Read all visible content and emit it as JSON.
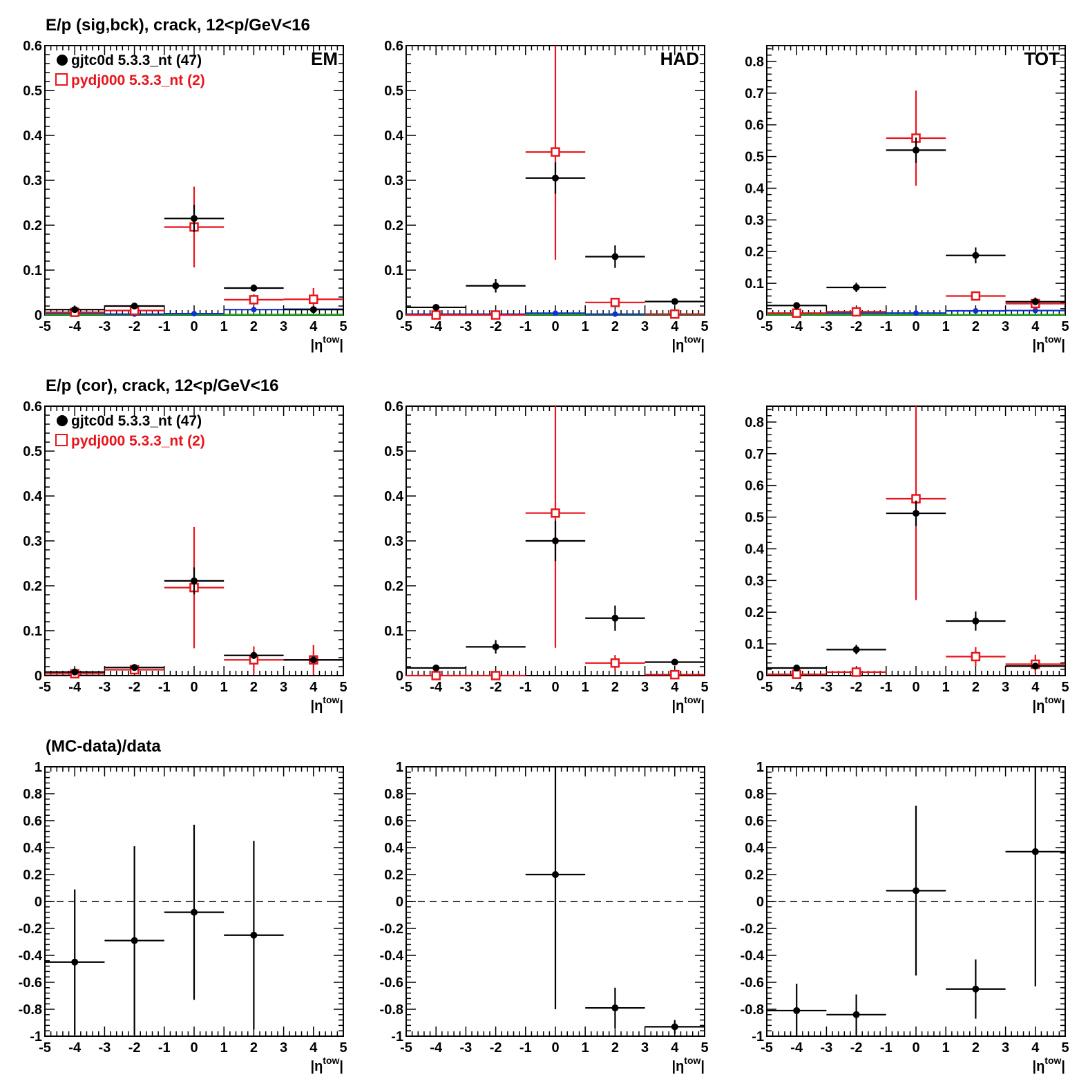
{
  "colors": {
    "data": "#000000",
    "mc": "#e8141c",
    "bck_blue": "#1030d0",
    "bck_green": "#10b010"
  },
  "legend": {
    "data_label": "gjtc0d 5.3.3_nt (47)",
    "mc_label": "pydj000 5.3.3_nt (2)"
  },
  "rows": [
    {
      "title": "E/p (sig,bck), crack, 12<p/GeV<16"
    },
    {
      "title": "E/p (cor), crack, 12<p/GeV<16"
    },
    {
      "title": "(MC-data)/data"
    }
  ],
  "axis": {
    "xlabel_main": "|η",
    "xlabel_sup": "tow",
    "xlabel_close": "|"
  },
  "chart_data": [
    {
      "type": "scatter",
      "row": 0,
      "col": 0,
      "tag": "EM",
      "legend": true,
      "x_edges": [
        -5,
        -3,
        -1,
        1,
        3,
        5
      ],
      "xlim": [
        -5,
        5
      ],
      "ylim": [
        0,
        0.6
      ],
      "xticks": [
        -5,
        -4,
        -3,
        -2,
        -1,
        0,
        1,
        2,
        3,
        4,
        5
      ],
      "yticks": [
        0,
        0.1,
        0.2,
        0.3,
        0.4,
        0.5,
        0.6
      ],
      "ytick_labels": [
        "0",
        "0.1",
        "0.2",
        "0.3",
        "0.4",
        "0.5",
        "0.6"
      ],
      "series": [
        {
          "name": "gjtc0d 5.3.3_nt (47)",
          "role": "data",
          "marker": "dot",
          "x": [
            -4,
            -2,
            0,
            2,
            4
          ],
          "y": [
            0.012,
            0.02,
            0.215,
            0.06,
            0.012
          ],
          "err": [
            0.003,
            0.005,
            0.03,
            0.008,
            0.003
          ]
        },
        {
          "name": "pydj000 5.3.3_nt (2)",
          "role": "mc",
          "marker": "square",
          "x": [
            -4,
            -2,
            0,
            2,
            4
          ],
          "y": [
            0.006,
            0.01,
            0.196,
            0.034,
            0.035
          ],
          "err": [
            0.003,
            0.006,
            0.09,
            0.012,
            0.025
          ]
        },
        {
          "role": "bck_blue",
          "marker": "diamond",
          "x": [
            -4,
            -2,
            0,
            2,
            4
          ],
          "y": [
            0.004,
            0.002,
            0.003,
            0.012,
            0.013
          ],
          "err": [
            0,
            0,
            0,
            0,
            0
          ]
        },
        {
          "role": "bck_green",
          "marker": "none",
          "x": [
            -4,
            -2,
            0,
            2,
            4
          ],
          "y": [
            0.001,
            0.001,
            0.001,
            0.001,
            0.001
          ],
          "err": [
            0,
            0,
            0,
            0,
            0
          ]
        }
      ]
    },
    {
      "type": "scatter",
      "row": 0,
      "col": 1,
      "tag": "HAD",
      "legend": false,
      "x_edges": [
        -5,
        -3,
        -1,
        1,
        3,
        5
      ],
      "xlim": [
        -5,
        5
      ],
      "ylim": [
        0,
        0.6
      ],
      "xticks": [
        -5,
        -4,
        -3,
        -2,
        -1,
        0,
        1,
        2,
        3,
        4,
        5
      ],
      "yticks": [
        0,
        0.1,
        0.2,
        0.3,
        0.4,
        0.5,
        0.6
      ],
      "ytick_labels": [
        "0",
        "0.1",
        "0.2",
        "0.3",
        "0.4",
        "0.5",
        "0.6"
      ],
      "series": [
        {
          "role": "data",
          "marker": "dot",
          "x": [
            -4,
            -2,
            0,
            2,
            4
          ],
          "y": [
            0.017,
            0.065,
            0.305,
            0.13,
            0.03
          ],
          "err": [
            0.002,
            0.015,
            0.035,
            0.025,
            0.003
          ]
        },
        {
          "role": "mc",
          "marker": "square",
          "x": [
            -4,
            -2,
            0,
            2,
            4
          ],
          "y": [
            0.0,
            0.0,
            0.363,
            0.028,
            0.002
          ],
          "err": [
            0.0,
            0.0,
            0.24,
            0.006,
            0.0
          ]
        },
        {
          "role": "bck_blue",
          "marker": "diamond",
          "x": [
            -4,
            -2,
            0,
            2,
            4
          ],
          "y": [
            0.002,
            0.002,
            0.004,
            0.002,
            0.002
          ],
          "err": [
            0,
            0,
            0,
            0,
            0
          ]
        },
        {
          "role": "bck_green",
          "marker": "none",
          "x": [
            -4,
            -2,
            0,
            2,
            4
          ],
          "y": [
            0.001,
            0.001,
            0.001,
            0.001,
            0.001
          ],
          "err": [
            0,
            0,
            0,
            0,
            0
          ]
        }
      ]
    },
    {
      "type": "scatter",
      "row": 0,
      "col": 2,
      "tag": "TOT",
      "legend": false,
      "x_edges": [
        -5,
        -3,
        -1,
        1,
        3,
        5
      ],
      "xlim": [
        -5,
        5
      ],
      "ylim": [
        0,
        0.85
      ],
      "xticks": [
        -5,
        -4,
        -3,
        -2,
        -1,
        0,
        1,
        2,
        3,
        4,
        5
      ],
      "yticks": [
        0,
        0.1,
        0.2,
        0.3,
        0.4,
        0.5,
        0.6,
        0.7,
        0.8
      ],
      "ytick_labels": [
        "0",
        "0.1",
        "0.2",
        "0.3",
        "0.4",
        "0.5",
        "0.6",
        "0.7",
        "0.8"
      ],
      "series": [
        {
          "role": "data",
          "marker": "dot",
          "x": [
            -4,
            -2,
            0,
            2,
            4
          ],
          "y": [
            0.03,
            0.087,
            0.52,
            0.188,
            0.042
          ],
          "err": [
            0.004,
            0.015,
            0.04,
            0.025,
            0.005
          ]
        },
        {
          "role": "mc",
          "marker": "square",
          "x": [
            -4,
            -2,
            0,
            2,
            4
          ],
          "y": [
            0.006,
            0.01,
            0.558,
            0.06,
            0.036
          ],
          "err": [
            0.003,
            0.006,
            0.15,
            0.01,
            0.02
          ]
        },
        {
          "role": "bck_blue",
          "marker": "diamond",
          "x": [
            -4,
            -2,
            0,
            2,
            4
          ],
          "y": [
            0.005,
            0.006,
            0.006,
            0.013,
            0.014
          ],
          "err": [
            0,
            0,
            0,
            0,
            0
          ]
        },
        {
          "role": "bck_green",
          "marker": "none",
          "x": [
            -4,
            -2,
            0,
            2,
            4
          ],
          "y": [
            0.001,
            0.001,
            0.001,
            0.001,
            0.001
          ],
          "err": [
            0,
            0,
            0,
            0,
            0
          ]
        }
      ]
    },
    {
      "type": "scatter",
      "row": 1,
      "col": 0,
      "tag": "",
      "legend": true,
      "x_edges": [
        -5,
        -3,
        -1,
        1,
        3,
        5
      ],
      "xlim": [
        -5,
        5
      ],
      "ylim": [
        0,
        0.6
      ],
      "xticks": [
        -5,
        -4,
        -3,
        -2,
        -1,
        0,
        1,
        2,
        3,
        4,
        5
      ],
      "yticks": [
        0,
        0.1,
        0.2,
        0.3,
        0.4,
        0.5,
        0.6
      ],
      "ytick_labels": [
        "0",
        "0.1",
        "0.2",
        "0.3",
        "0.4",
        "0.5",
        "0.6"
      ],
      "series": [
        {
          "name": "gjtc0d 5.3.3_nt (47)",
          "role": "data",
          "marker": "dot",
          "x": [
            -4,
            -2,
            0,
            2,
            4
          ],
          "y": [
            0.008,
            0.018,
            0.211,
            0.045,
            0.035
          ],
          "err": [
            0.003,
            0.005,
            0.03,
            0.008,
            0.003
          ]
        },
        {
          "name": "pydj000 5.3.3_nt (2)",
          "role": "mc",
          "marker": "square",
          "x": [
            -4,
            -2,
            0,
            2,
            4
          ],
          "y": [
            0.004,
            0.013,
            0.196,
            0.035,
            0.035
          ],
          "err": [
            0.003,
            0.006,
            0.135,
            0.03,
            0.033
          ]
        }
      ]
    },
    {
      "type": "scatter",
      "row": 1,
      "col": 1,
      "tag": "",
      "legend": false,
      "x_edges": [
        -5,
        -3,
        -1,
        1,
        3,
        5
      ],
      "xlim": [
        -5,
        5
      ],
      "ylim": [
        0,
        0.6
      ],
      "xticks": [
        -5,
        -4,
        -3,
        -2,
        -1,
        0,
        1,
        2,
        3,
        4,
        5
      ],
      "yticks": [
        0,
        0.1,
        0.2,
        0.3,
        0.4,
        0.5,
        0.6
      ],
      "ytick_labels": [
        "0",
        "0.1",
        "0.2",
        "0.3",
        "0.4",
        "0.5",
        "0.6"
      ],
      "series": [
        {
          "role": "data",
          "marker": "dot",
          "x": [
            -4,
            -2,
            0,
            2,
            4
          ],
          "y": [
            0.017,
            0.064,
            0.3,
            0.128,
            0.03
          ],
          "err": [
            0.002,
            0.015,
            0.045,
            0.028,
            0.003
          ]
        },
        {
          "role": "mc",
          "marker": "square",
          "x": [
            -4,
            -2,
            0,
            2,
            4
          ],
          "y": [
            0.0,
            0.0,
            0.362,
            0.028,
            0.002
          ],
          "err": [
            0.0,
            0.0,
            0.3,
            0.018,
            0.0
          ]
        }
      ]
    },
    {
      "type": "scatter",
      "row": 1,
      "col": 2,
      "tag": "",
      "legend": false,
      "x_edges": [
        -5,
        -3,
        -1,
        1,
        3,
        5
      ],
      "xlim": [
        -5,
        5
      ],
      "ylim": [
        0,
        0.85
      ],
      "xticks": [
        -5,
        -4,
        -3,
        -2,
        -1,
        0,
        1,
        2,
        3,
        4,
        5
      ],
      "yticks": [
        0,
        0.1,
        0.2,
        0.3,
        0.4,
        0.5,
        0.6,
        0.7,
        0.8
      ],
      "ytick_labels": [
        "0",
        "0.1",
        "0.2",
        "0.3",
        "0.4",
        "0.5",
        "0.6",
        "0.7",
        "0.8"
      ],
      "series": [
        {
          "role": "data",
          "marker": "dot",
          "x": [
            -4,
            -2,
            0,
            2,
            4
          ],
          "y": [
            0.024,
            0.082,
            0.512,
            0.172,
            0.03
          ],
          "err": [
            0.004,
            0.015,
            0.04,
            0.03,
            0.005
          ]
        },
        {
          "role": "mc",
          "marker": "square",
          "x": [
            -4,
            -2,
            0,
            2,
            4
          ],
          "y": [
            0.004,
            0.011,
            0.558,
            0.06,
            0.036
          ],
          "err": [
            0.003,
            0.008,
            0.32,
            0.03,
            0.03
          ]
        }
      ]
    },
    {
      "type": "scatter",
      "row": 2,
      "col": 0,
      "tag": "",
      "legend": false,
      "zero_line": true,
      "x_edges": [
        -5,
        -3,
        -1,
        1,
        3,
        5
      ],
      "xlim": [
        -5,
        5
      ],
      "ylim": [
        -1,
        1
      ],
      "xticks": [
        -5,
        -4,
        -3,
        -2,
        -1,
        0,
        1,
        2,
        3,
        4,
        5
      ],
      "yticks": [
        -1,
        -0.8,
        -0.6,
        -0.4,
        -0.2,
        0,
        0.2,
        0.4,
        0.6,
        0.8,
        1
      ],
      "ytick_labels": [
        "-1",
        "-0.8",
        "-0.6",
        "-0.4",
        "-0.2",
        "0",
        "0.2",
        "0.4",
        "0.6",
        "0.8",
        "1"
      ],
      "series": [
        {
          "role": "data",
          "marker": "dot",
          "x": [
            -4,
            -2,
            0,
            2
          ],
          "y": [
            -0.45,
            -0.29,
            -0.08,
            -0.25
          ],
          "err": [
            0.54,
            0.7,
            0.65,
            0.7
          ]
        }
      ]
    },
    {
      "type": "scatter",
      "row": 2,
      "col": 1,
      "tag": "",
      "legend": false,
      "zero_line": true,
      "x_edges": [
        -5,
        -3,
        -1,
        1,
        3,
        5
      ],
      "xlim": [
        -5,
        5
      ],
      "ylim": [
        -1,
        1
      ],
      "xticks": [
        -5,
        -4,
        -3,
        -2,
        -1,
        0,
        1,
        2,
        3,
        4,
        5
      ],
      "yticks": [
        -1,
        -0.8,
        -0.6,
        -0.4,
        -0.2,
        0,
        0.2,
        0.4,
        0.6,
        0.8,
        1
      ],
      "ytick_labels": [
        "-1",
        "-0.8",
        "-0.6",
        "-0.4",
        "-0.2",
        "0",
        "0.2",
        "0.4",
        "0.6",
        "0.8",
        "1"
      ],
      "series": [
        {
          "role": "data",
          "marker": "dot",
          "x": [
            0,
            2,
            4
          ],
          "y": [
            0.2,
            -0.79,
            -0.93
          ],
          "err": [
            1.0,
            0.15,
            0.05
          ]
        }
      ]
    },
    {
      "type": "scatter",
      "row": 2,
      "col": 2,
      "tag": "",
      "legend": false,
      "zero_line": true,
      "x_edges": [
        -5,
        -3,
        -1,
        1,
        3,
        5
      ],
      "xlim": [
        -5,
        5
      ],
      "ylim": [
        -1,
        1
      ],
      "xticks": [
        -5,
        -4,
        -3,
        -2,
        -1,
        0,
        1,
        2,
        3,
        4,
        5
      ],
      "yticks": [
        -1,
        -0.8,
        -0.6,
        -0.4,
        -0.2,
        0,
        0.2,
        0.4,
        0.6,
        0.8,
        1
      ],
      "ytick_labels": [
        "-1",
        "-0.8",
        "-0.6",
        "-0.4",
        "-0.2",
        "0",
        "0.2",
        "0.4",
        "0.6",
        "0.8",
        "1"
      ],
      "series": [
        {
          "role": "data",
          "marker": "dot",
          "x": [
            -4,
            -2,
            0,
            2,
            4
          ],
          "y": [
            -0.81,
            -0.84,
            0.08,
            -0.65,
            0.37
          ],
          "err": [
            0.2,
            0.15,
            0.63,
            0.22,
            1.0
          ]
        }
      ]
    }
  ]
}
